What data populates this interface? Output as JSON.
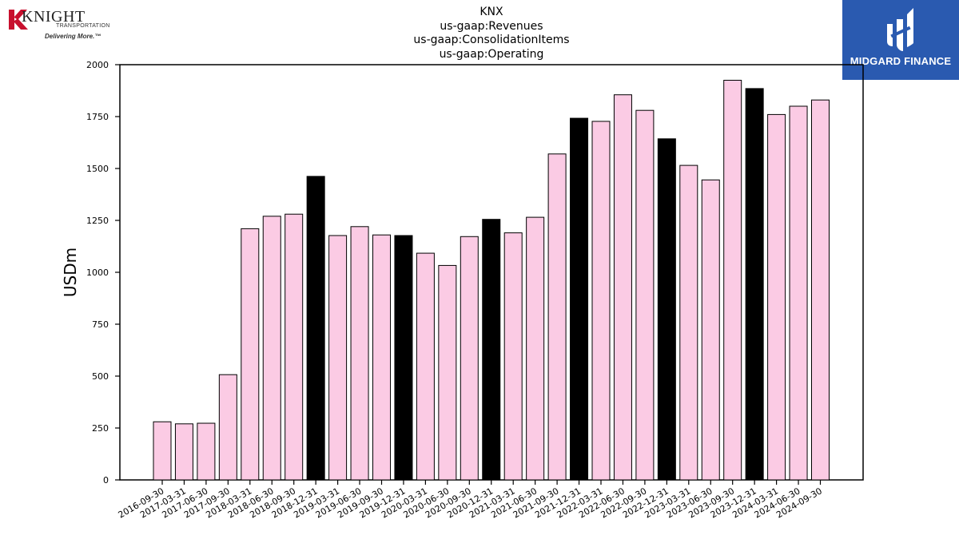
{
  "header": {
    "title_lines": [
      "KNX",
      "us-gaap:Revenues",
      "us-gaap:ConsolidationItems",
      "us-gaap:Operating"
    ]
  },
  "logos": {
    "left": {
      "word": "KNIGHT",
      "sub": "TRANSPORTATION",
      "tagline": "Delivering More.™",
      "colors": {
        "brand_red": "#c8102e"
      }
    },
    "right": {
      "name": "MIDGARD FINANCE",
      "background": "#2a5ab0"
    }
  },
  "chart_data": {
    "type": "bar",
    "title": "",
    "xlabel": "",
    "ylabel": "USDm",
    "ylim": [
      0,
      2000
    ],
    "yticks": [
      0,
      250,
      500,
      750,
      1000,
      1250,
      1500,
      1750,
      2000
    ],
    "grid": false,
    "categories": [
      "2016-09-30",
      "2017-03-31",
      "2017-06-30",
      "2017-09-30",
      "2018-03-31",
      "2018-06-30",
      "2018-09-30",
      "2018-12-31",
      "2019-03-31",
      "2019-06-30",
      "2019-09-30",
      "2019-12-31",
      "2020-03-31",
      "2020-06-30",
      "2020-09-30",
      "2020-12-31",
      "2021-03-31",
      "2021-06-30",
      "2021-09-30",
      "2021-12-31",
      "2022-03-31",
      "2022-06-30",
      "2022-09-30",
      "2022-12-31",
      "2023-03-31",
      "2023-06-30",
      "2023-09-30",
      "2023-12-31",
      "2024-03-31",
      "2024-06-30",
      "2024-09-30"
    ],
    "values": [
      280,
      270,
      273,
      507,
      1210,
      1270,
      1280,
      1462,
      1177,
      1220,
      1180,
      1177,
      1092,
      1033,
      1172,
      1255,
      1190,
      1265,
      1570,
      1742,
      1727,
      1855,
      1780,
      1643,
      1515,
      1445,
      1925,
      1885,
      1760,
      1800,
      1830
    ],
    "highlight": [
      false,
      false,
      false,
      false,
      false,
      false,
      false,
      true,
      false,
      false,
      false,
      true,
      false,
      false,
      false,
      true,
      false,
      false,
      false,
      true,
      false,
      false,
      false,
      true,
      false,
      false,
      false,
      true,
      false,
      false,
      false
    ],
    "colors": {
      "bar": "#fbcbe4",
      "highlight": "#000000",
      "edge": "#000000"
    }
  }
}
